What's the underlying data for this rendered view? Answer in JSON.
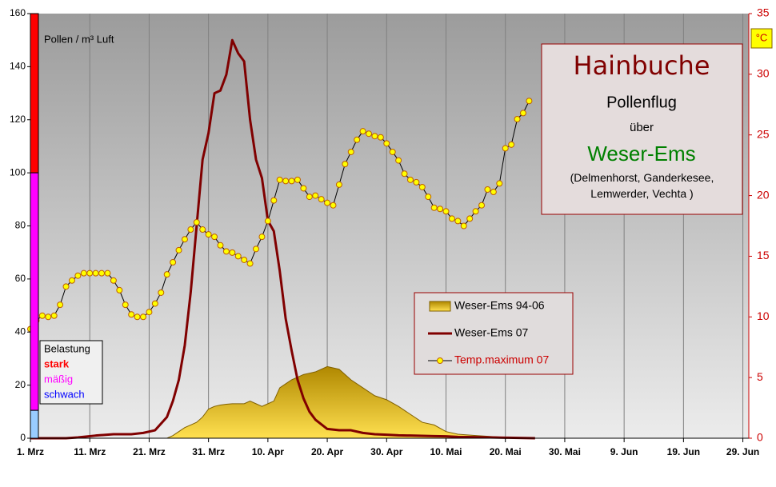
{
  "chart_data": {
    "type": "pollen",
    "y_axis_label": "Pollen / m³ Luft",
    "y2_unit": "°C",
    "title_box": {
      "title": "Hainbuche",
      "line1": "Pollenflug",
      "line2": "über",
      "region": "Weser-Ems",
      "places": "(Delmenhorst, Ganderkesee, Lemwerder, Vechta )"
    },
    "load_legend_title": "Belastung",
    "load_levels": [
      {
        "label": "stark",
        "from": 100,
        "to": 160,
        "color": "#ff0000"
      },
      {
        "label": "mäßig",
        "from": 10.5,
        "to": 100,
        "color": "#ff00ff"
      },
      {
        "label": "schwach",
        "from": 0,
        "to": 10.5,
        "color": "#99ccff"
      }
    ],
    "x": [
      0,
      2,
      4,
      6,
      8,
      11,
      14,
      17,
      19,
      21,
      23,
      24,
      25,
      26,
      27,
      28,
      29,
      30,
      31,
      32,
      33,
      34,
      35,
      36,
      37,
      38,
      39,
      40,
      41,
      42,
      43,
      44,
      45,
      46,
      47,
      48,
      50,
      52,
      54,
      56,
      58,
      60,
      62,
      64,
      66,
      68,
      70,
      72,
      75,
      80,
      85
    ],
    "series": [
      {
        "name": "Weser-Ems 94-06",
        "kind": "area",
        "color": "#d4a800",
        "values": [
          0,
          0,
          0,
          0,
          0,
          0,
          0,
          0,
          0,
          0,
          0,
          1,
          2.5,
          4,
          5,
          6,
          8,
          11,
          12,
          12.5,
          12.8,
          13,
          13,
          13,
          14,
          13,
          12,
          13,
          14,
          19,
          20.5,
          22,
          23,
          24,
          24.5,
          25,
          27,
          26,
          22,
          19,
          16,
          14.5,
          12,
          9,
          6,
          5,
          2.5,
          1.5,
          1,
          0.3,
          0
        ]
      },
      {
        "name": "Weser-Ems 07",
        "kind": "line",
        "color": "#800000",
        "values": [
          0,
          0,
          0,
          0,
          0.3,
          1,
          1.5,
          1.5,
          2,
          3,
          8,
          14,
          22,
          35,
          55,
          80,
          105,
          115,
          130,
          131,
          137,
          150,
          145,
          142,
          120,
          105,
          98,
          82,
          78,
          63,
          45,
          33,
          22,
          15,
          10,
          7,
          3.5,
          3,
          3,
          2,
          1.5,
          1.3,
          1.1,
          1,
          0.9,
          0.8,
          0.7,
          0.5,
          0.4,
          0.2,
          0
        ]
      },
      {
        "name": "Temp.maximum 07",
        "kind": "markers",
        "axis": "y2",
        "color": "#ffff00",
        "x": [
          0,
          1,
          2,
          3,
          4,
          5,
          6,
          7,
          8,
          9,
          10,
          11,
          12,
          13,
          14,
          15,
          16,
          17,
          18,
          19,
          20,
          21,
          22,
          23,
          24,
          25,
          26,
          27,
          28,
          29,
          30,
          31,
          32,
          33,
          34,
          35,
          36,
          37,
          38,
          39,
          40,
          41,
          42,
          43,
          44,
          45,
          46,
          47,
          48,
          49,
          50,
          51,
          52,
          53,
          54,
          55,
          56,
          57,
          58,
          59,
          60,
          61,
          62,
          63,
          64,
          65,
          66,
          67,
          68,
          69,
          70,
          71,
          72,
          73,
          74,
          75,
          76,
          77,
          78,
          79,
          80,
          81,
          82,
          83,
          84
        ],
        "values": [
          9,
          9.7,
          10.1,
          10,
          10.1,
          11,
          12.5,
          13,
          13.4,
          13.6,
          13.6,
          13.6,
          13.6,
          13.6,
          13,
          12.2,
          11,
          10.2,
          10,
          10,
          10.4,
          11.1,
          12,
          13.5,
          14.5,
          15.5,
          16.4,
          17.2,
          17.8,
          17.2,
          16.8,
          16.6,
          15.9,
          15.4,
          15.3,
          15,
          14.7,
          14.4,
          15.6,
          16.6,
          17.9,
          19.6,
          21.3,
          21.2,
          21.2,
          21.3,
          20.6,
          19.9,
          20,
          19.7,
          19.4,
          19.2,
          20.9,
          22.6,
          23.6,
          24.6,
          25.3,
          25.1,
          24.9,
          24.8,
          24.3,
          23.6,
          22.9,
          21.8,
          21.3,
          21.1,
          20.7,
          19.9,
          19,
          18.9,
          18.7,
          18.1,
          17.9,
          17.5,
          18.1,
          18.7,
          19.2,
          20.5,
          20.3,
          21,
          23.9,
          24.2,
          26.3,
          26.8,
          27.8
        ]
      }
    ],
    "xlim": [
      0,
      121
    ],
    "xticks": [
      {
        "value": 0,
        "label": "1. Mrz"
      },
      {
        "value": 10,
        "label": "11. Mrz"
      },
      {
        "value": 20,
        "label": "21. Mrz"
      },
      {
        "value": 30,
        "label": "31. Mrz"
      },
      {
        "value": 40,
        "label": "10. Apr"
      },
      {
        "value": 50,
        "label": "20. Apr"
      },
      {
        "value": 60,
        "label": "30. Apr"
      },
      {
        "value": 70,
        "label": "10. Mai"
      },
      {
        "value": 80,
        "label": "20. Mai"
      },
      {
        "value": 90,
        "label": "30. Mai"
      },
      {
        "value": 100,
        "label": "9. Jun"
      },
      {
        "value": 110,
        "label": "19. Jun"
      },
      {
        "value": 120,
        "label": "29. Jun"
      }
    ],
    "ylim": [
      0,
      160
    ],
    "yticks": [
      0,
      20,
      40,
      60,
      80,
      100,
      120,
      140,
      160
    ],
    "y2lim": [
      0,
      35
    ],
    "y2ticks": [
      0,
      5,
      10,
      15,
      20,
      25,
      30,
      35
    ],
    "grid": true
  }
}
